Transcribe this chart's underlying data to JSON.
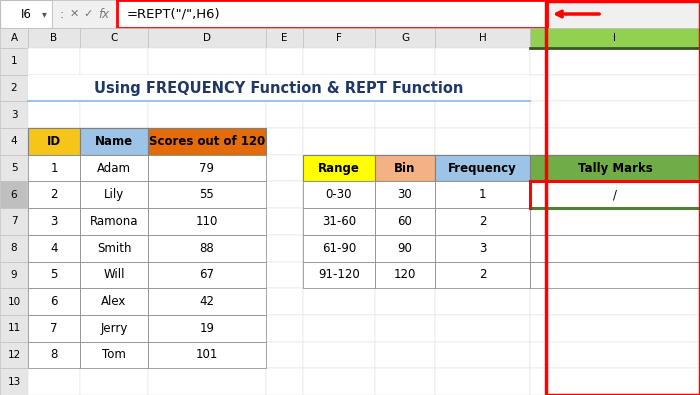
{
  "title": "Using FREQUENCY Function & REPT Function",
  "formula_bar_text": "=REPT(\"/\",H6)",
  "cell_ref": "I6",
  "left_table": {
    "headers": [
      "ID",
      "Name",
      "Scores out of 120"
    ],
    "header_colors": [
      "#F5C518",
      "#9DC3E6",
      "#E36C09"
    ],
    "rows": [
      [
        1,
        "Adam",
        79
      ],
      [
        2,
        "Lily",
        55
      ],
      [
        3,
        "Ramona",
        110
      ],
      [
        4,
        "Smith",
        88
      ],
      [
        5,
        "Will",
        67
      ],
      [
        6,
        "Alex",
        42
      ],
      [
        7,
        "Jerry",
        19
      ],
      [
        8,
        "Tom",
        101
      ]
    ]
  },
  "right_table": {
    "headers": [
      "Range",
      "Bin",
      "Frequency",
      "Tally Marks"
    ],
    "header_colors": [
      "#FFFF00",
      "#F4B183",
      "#9DC3E6",
      "#70AD47"
    ],
    "rows": [
      [
        "0-30",
        30,
        1,
        "/"
      ],
      [
        "31-60",
        60,
        2,
        ""
      ],
      [
        "61-90",
        90,
        3,
        ""
      ],
      [
        "91-120",
        120,
        2,
        ""
      ]
    ],
    "tally_active_row": 0
  },
  "bg_color": "#FFFFFF",
  "title_color": "#1F3864",
  "arrow_color": "#FF0000",
  "active_cell_border_top": "#FF0000",
  "active_cell_border_bottom": "#507E32",
  "formula_box_border": "#FF0000",
  "col_i_header_bg": "#92D050",
  "col_header_bg": "#E7E6E6",
  "row6_num_bg": "#BFBFBF",
  "row_num_bg": "#E7E6E6"
}
